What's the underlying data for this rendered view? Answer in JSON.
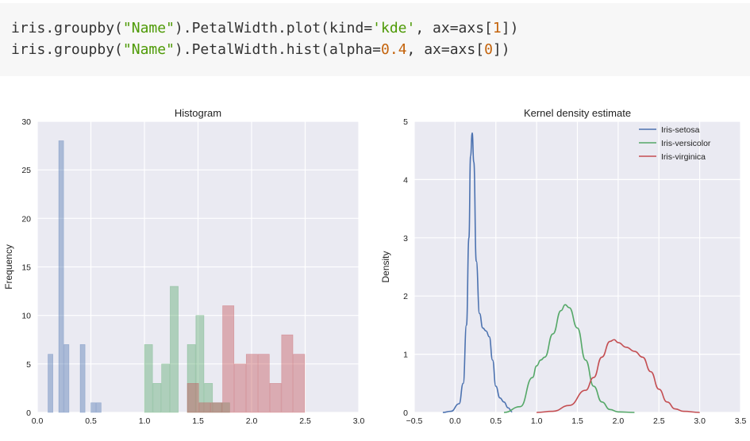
{
  "code": {
    "lines": [
      [
        {
          "t": "iris.groupby(",
          "k": "plain"
        },
        {
          "t": "\"Name\"",
          "k": "str"
        },
        {
          "t": ").PetalWidth.plot(kind=",
          "k": "plain"
        },
        {
          "t": "'kde'",
          "k": "str"
        },
        {
          "t": ", ax=axs[",
          "k": "plain"
        },
        {
          "t": "1",
          "k": "num"
        },
        {
          "t": "])",
          "k": "plain"
        }
      ],
      [
        {
          "t": "iris.groupby(",
          "k": "plain"
        },
        {
          "t": "\"Name\"",
          "k": "str"
        },
        {
          "t": ").PetalWidth.hist(alpha=",
          "k": "plain"
        },
        {
          "t": "0.4",
          "k": "num"
        },
        {
          "t": ", ax=axs[",
          "k": "plain"
        },
        {
          "t": "0",
          "k": "num"
        },
        {
          "t": "])",
          "k": "plain"
        }
      ]
    ]
  },
  "chart_data": [
    {
      "type": "bar",
      "title": "Histogram",
      "xlabel": "",
      "ylabel": "Frequency",
      "xlim": [
        0,
        3.0
      ],
      "ylim": [
        0,
        30
      ],
      "xticks": [
        "0.0",
        "0.5",
        "1.0",
        "1.5",
        "2.0",
        "2.5",
        "3.0"
      ],
      "yticks": [
        "0",
        "5",
        "10",
        "15",
        "20",
        "25",
        "30"
      ],
      "grid": true,
      "alpha": 0.4,
      "series": [
        {
          "color": "#4c72b0",
          "bins": [
            {
              "x0": 0.1,
              "x1": 0.15,
              "count": 6
            },
            {
              "x0": 0.2,
              "x1": 0.25,
              "count": 28
            },
            {
              "x0": 0.25,
              "x1": 0.3,
              "count": 7
            },
            {
              "x0": 0.4,
              "x1": 0.45,
              "count": 7
            },
            {
              "x0": 0.5,
              "x1": 0.55,
              "count": 1
            },
            {
              "x0": 0.55,
              "x1": 0.6,
              "count": 1
            }
          ]
        },
        {
          "color": "#55a868",
          "bins": [
            {
              "x0": 1.0,
              "x1": 1.08,
              "count": 7
            },
            {
              "x0": 1.08,
              "x1": 1.16,
              "count": 3
            },
            {
              "x0": 1.16,
              "x1": 1.24,
              "count": 5
            },
            {
              "x0": 1.24,
              "x1": 1.32,
              "count": 13
            },
            {
              "x0": 1.4,
              "x1": 1.48,
              "count": 7
            },
            {
              "x0": 1.48,
              "x1": 1.56,
              "count": 10
            },
            {
              "x0": 1.56,
              "x1": 1.64,
              "count": 3
            },
            {
              "x0": 1.64,
              "x1": 1.72,
              "count": 1
            },
            {
              "x0": 1.72,
              "x1": 1.8,
              "count": 1
            }
          ]
        },
        {
          "color": "#c44e52",
          "bins": [
            {
              "x0": 1.4,
              "x1": 1.51,
              "count": 3
            },
            {
              "x0": 1.51,
              "x1": 1.62,
              "count": 1
            },
            {
              "x0": 1.62,
              "x1": 1.73,
              "count": 1
            },
            {
              "x0": 1.73,
              "x1": 1.84,
              "count": 11
            },
            {
              "x0": 1.84,
              "x1": 1.95,
              "count": 5
            },
            {
              "x0": 1.95,
              "x1": 2.06,
              "count": 6
            },
            {
              "x0": 2.06,
              "x1": 2.17,
              "count": 6
            },
            {
              "x0": 2.17,
              "x1": 2.28,
              "count": 3
            },
            {
              "x0": 2.28,
              "x1": 2.39,
              "count": 8
            },
            {
              "x0": 2.39,
              "x1": 2.5,
              "count": 6
            }
          ]
        }
      ]
    },
    {
      "type": "line",
      "title": "Kernel density estimate",
      "xlabel": "",
      "ylabel": "Density",
      "xlim": [
        -0.5,
        3.5
      ],
      "ylim": [
        0,
        5
      ],
      "xticks": [
        "−0.5",
        "0.0",
        "0.5",
        "1.0",
        "1.5",
        "2.0",
        "2.5",
        "3.0",
        "3.5"
      ],
      "yticks": [
        "0",
        "1",
        "2",
        "3",
        "4",
        "5"
      ],
      "grid": true,
      "legend_position": "top-right",
      "series": [
        {
          "name": "Iris-setosa",
          "color": "#4c72b0",
          "points": [
            [
              -0.15,
              0
            ],
            [
              -0.05,
              0.02
            ],
            [
              0.05,
              0.15
            ],
            [
              0.1,
              0.5
            ],
            [
              0.14,
              1.5
            ],
            [
              0.17,
              3.0
            ],
            [
              0.19,
              4.4
            ],
            [
              0.21,
              4.8
            ],
            [
              0.23,
              4.3
            ],
            [
              0.26,
              2.6
            ],
            [
              0.3,
              1.7
            ],
            [
              0.34,
              1.45
            ],
            [
              0.38,
              1.4
            ],
            [
              0.42,
              1.3
            ],
            [
              0.46,
              0.9
            ],
            [
              0.5,
              0.45
            ],
            [
              0.55,
              0.25
            ],
            [
              0.6,
              0.18
            ],
            [
              0.65,
              0.08
            ],
            [
              0.7,
              0.01
            ]
          ]
        },
        {
          "name": "Iris-versicolor",
          "color": "#55a868",
          "points": [
            [
              0.6,
              0
            ],
            [
              0.8,
              0.1
            ],
            [
              0.95,
              0.6
            ],
            [
              1.0,
              0.8
            ],
            [
              1.05,
              0.9
            ],
            [
              1.1,
              0.95
            ],
            [
              1.2,
              1.35
            ],
            [
              1.3,
              1.75
            ],
            [
              1.35,
              1.85
            ],
            [
              1.4,
              1.8
            ],
            [
              1.5,
              1.45
            ],
            [
              1.6,
              0.9
            ],
            [
              1.7,
              0.45
            ],
            [
              1.8,
              0.18
            ],
            [
              1.9,
              0.05
            ],
            [
              2.0,
              0.01
            ],
            [
              2.2,
              0
            ]
          ]
        },
        {
          "name": "Iris-virginica",
          "color": "#c44e52",
          "points": [
            [
              1.0,
              0
            ],
            [
              1.2,
              0.02
            ],
            [
              1.4,
              0.12
            ],
            [
              1.6,
              0.38
            ],
            [
              1.7,
              0.6
            ],
            [
              1.8,
              0.95
            ],
            [
              1.9,
              1.22
            ],
            [
              1.95,
              1.25
            ],
            [
              2.0,
              1.2
            ],
            [
              2.1,
              1.12
            ],
            [
              2.2,
              1.05
            ],
            [
              2.3,
              0.95
            ],
            [
              2.4,
              0.7
            ],
            [
              2.5,
              0.4
            ],
            [
              2.6,
              0.18
            ],
            [
              2.7,
              0.06
            ],
            [
              2.8,
              0.02
            ],
            [
              3.0,
              0
            ]
          ]
        }
      ]
    }
  ]
}
